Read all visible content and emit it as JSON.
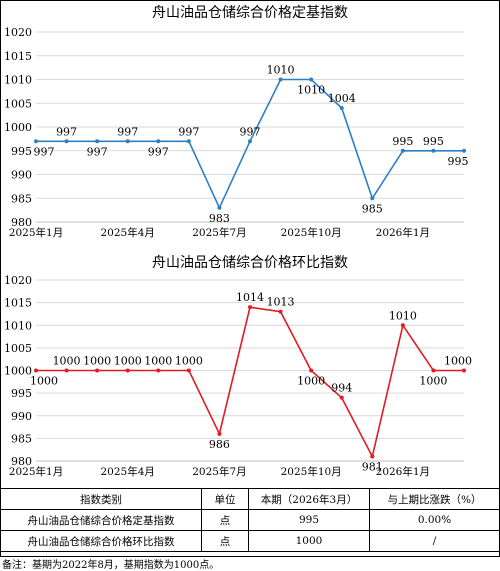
{
  "chart_data": [
    {
      "type": "line",
      "title": "舟山油品仓储综合价格定基指数",
      "ylim": [
        980,
        1020
      ],
      "yticks": [
        980,
        985,
        990,
        995,
        1000,
        1005,
        1010,
        1015,
        1020
      ],
      "x_tick_labels": [
        "2025年1月",
        "2025年4月",
        "2025年7月",
        "2025年10月",
        "2026年1月"
      ],
      "color": "#2e7fc1",
      "values": [
        997,
        997,
        997,
        997,
        997,
        997,
        983,
        997,
        1010,
        1010,
        1004,
        985,
        995,
        995,
        995
      ],
      "labels": [
        "997",
        "997",
        "997",
        "997",
        "997",
        "997",
        "983",
        "997",
        "1010",
        "1010",
        "1004",
        "985",
        "995",
        "995",
        "995"
      ]
    },
    {
      "type": "line",
      "title": "舟山油品仓储综合价格环比指数",
      "ylim": [
        980,
        1020
      ],
      "yticks": [
        980,
        985,
        990,
        995,
        1000,
        1005,
        1010,
        1015,
        1020
      ],
      "x_tick_labels": [
        "2025年1月",
        "2025年4月",
        "2025年7月",
        "2025年10月",
        "2026年1月"
      ],
      "color": "#e01b24",
      "values": [
        1000,
        1000,
        1000,
        1000,
        1000,
        1000,
        986,
        1014,
        1013,
        1000,
        994,
        981,
        1010,
        1000,
        1000
      ],
      "labels": [
        "1000",
        "1000",
        "1000",
        "1000",
        "1000",
        "1000",
        "986",
        "1014",
        "1013",
        "1000",
        "994",
        "981",
        "1010",
        "1000",
        "1000"
      ]
    }
  ],
  "table": {
    "headers": [
      "指数类别",
      "单位",
      "本期（2026年3月）",
      "与上期比涨跌（%）"
    ],
    "rows": [
      [
        "舟山油品仓储综合价格定基指数",
        "点",
        "995",
        "0.00%"
      ],
      [
        "舟山油品仓储综合价格环比指数",
        "点",
        "1000",
        "/"
      ]
    ]
  },
  "note": "备注：基期为2022年8月，基期指数为1000点。"
}
